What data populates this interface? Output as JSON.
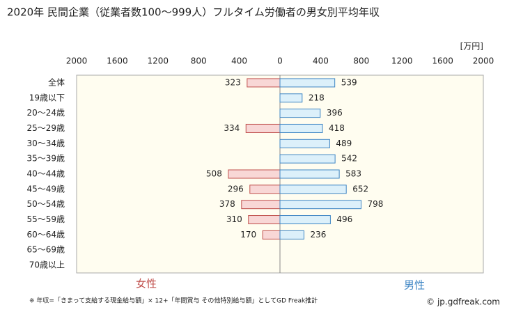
{
  "chart_data": {
    "type": "butterfly-bar",
    "title": "2020年 民間企業（従業者数100〜999人）フルタイム労働者の男女別平均年収",
    "unit_label": "[万円]",
    "categories": [
      "全体",
      "19歳以下",
      "20〜24歳",
      "25〜29歳",
      "30〜34歳",
      "35〜39歳",
      "40〜44歳",
      "45〜49歳",
      "50〜54歳",
      "55〜59歳",
      "60〜64歳",
      "65〜69歳",
      "70歳以上"
    ],
    "series": [
      {
        "name": "女性",
        "color": "#c0504d",
        "fill": "#f8d7d6",
        "side": "left",
        "values": [
          323,
          null,
          null,
          334,
          null,
          null,
          508,
          296,
          378,
          310,
          170,
          null,
          null
        ]
      },
      {
        "name": "男性",
        "color": "#3f86c4",
        "fill": "#dcf0fa",
        "side": "right",
        "values": [
          539,
          218,
          396,
          418,
          489,
          542,
          583,
          652,
          798,
          496,
          236,
          null,
          null
        ]
      }
    ],
    "xlim": [
      0,
      2000
    ],
    "xticks": [
      0,
      400,
      800,
      1200,
      1600,
      2000
    ],
    "xticks_left": [
      2000,
      1600,
      1200,
      800,
      400
    ],
    "footnote": "※ 年収=「きまって支給する現金給与額」× 12+「年間賞与 その他特別給与額」としてGD Freak推計",
    "source": "© jp.gdfreak.com"
  }
}
